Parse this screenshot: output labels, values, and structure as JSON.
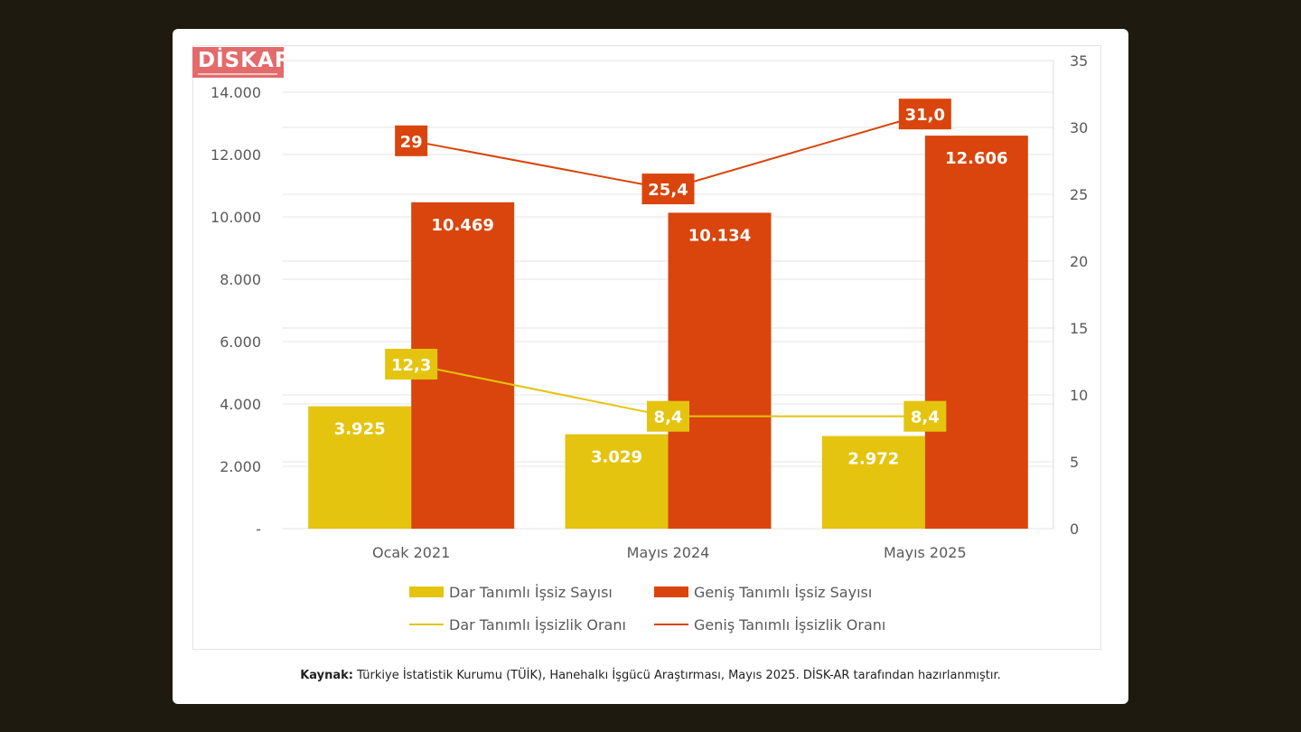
{
  "logo_text": "DİSKAR",
  "source": {
    "label": "Kaynak:",
    "text": " Türkiye İstatistik Kurumu (TÜİK), Hanehalkı İşgücü Araştırması, Mayıs 2025. DİSK-AR tarafından hazırlanmıştır."
  },
  "colors": {
    "dar": "#e4c40e",
    "genis": "#d9450c",
    "grid": "#e6e6e6",
    "axis_text": "#595959"
  },
  "chart_data": {
    "type": "bar",
    "categories": [
      "Ocak 2021",
      "Mayıs 2024",
      "Mayıs 2025"
    ],
    "series": [
      {
        "name": "Dar Tanımlı İşsiz Sayısı",
        "type": "bar",
        "axis": "left",
        "values": [
          3925,
          3029,
          2972
        ],
        "labels": [
          "3.925",
          "3.029",
          "2.972"
        ],
        "color": "#e4c40e"
      },
      {
        "name": "Geniş Tanımlı İşsiz Sayısı",
        "type": "bar",
        "axis": "left",
        "values": [
          10469,
          10134,
          12606
        ],
        "labels": [
          "10.469",
          "10.134",
          "12.606"
        ],
        "color": "#d9450c"
      },
      {
        "name": "Dar Tanımlı İşsizlik Oranı",
        "type": "line",
        "axis": "right",
        "values": [
          12.3,
          8.4,
          8.4
        ],
        "labels": [
          "12,3",
          "8,4",
          "8,4"
        ],
        "color": "#e4c40e"
      },
      {
        "name": "Geniş Tanımlı İşsizlik Oranı",
        "type": "line",
        "axis": "right",
        "values": [
          29,
          25.4,
          31.0
        ],
        "labels": [
          "29",
          "25,4",
          "31,0"
        ],
        "color": "#d9450c"
      }
    ],
    "y_left": {
      "ylim": [
        0,
        14000
      ],
      "ticks": [
        "-",
        "2.000",
        "4.000",
        "6.000",
        "8.000",
        "10.000",
        "12.000",
        "14.000"
      ]
    },
    "y_right": {
      "ylim": [
        0,
        35
      ],
      "ticks": [
        "0",
        "5",
        "10",
        "15",
        "20",
        "25",
        "30",
        "35"
      ]
    },
    "grid": true,
    "legend": "bottom"
  }
}
